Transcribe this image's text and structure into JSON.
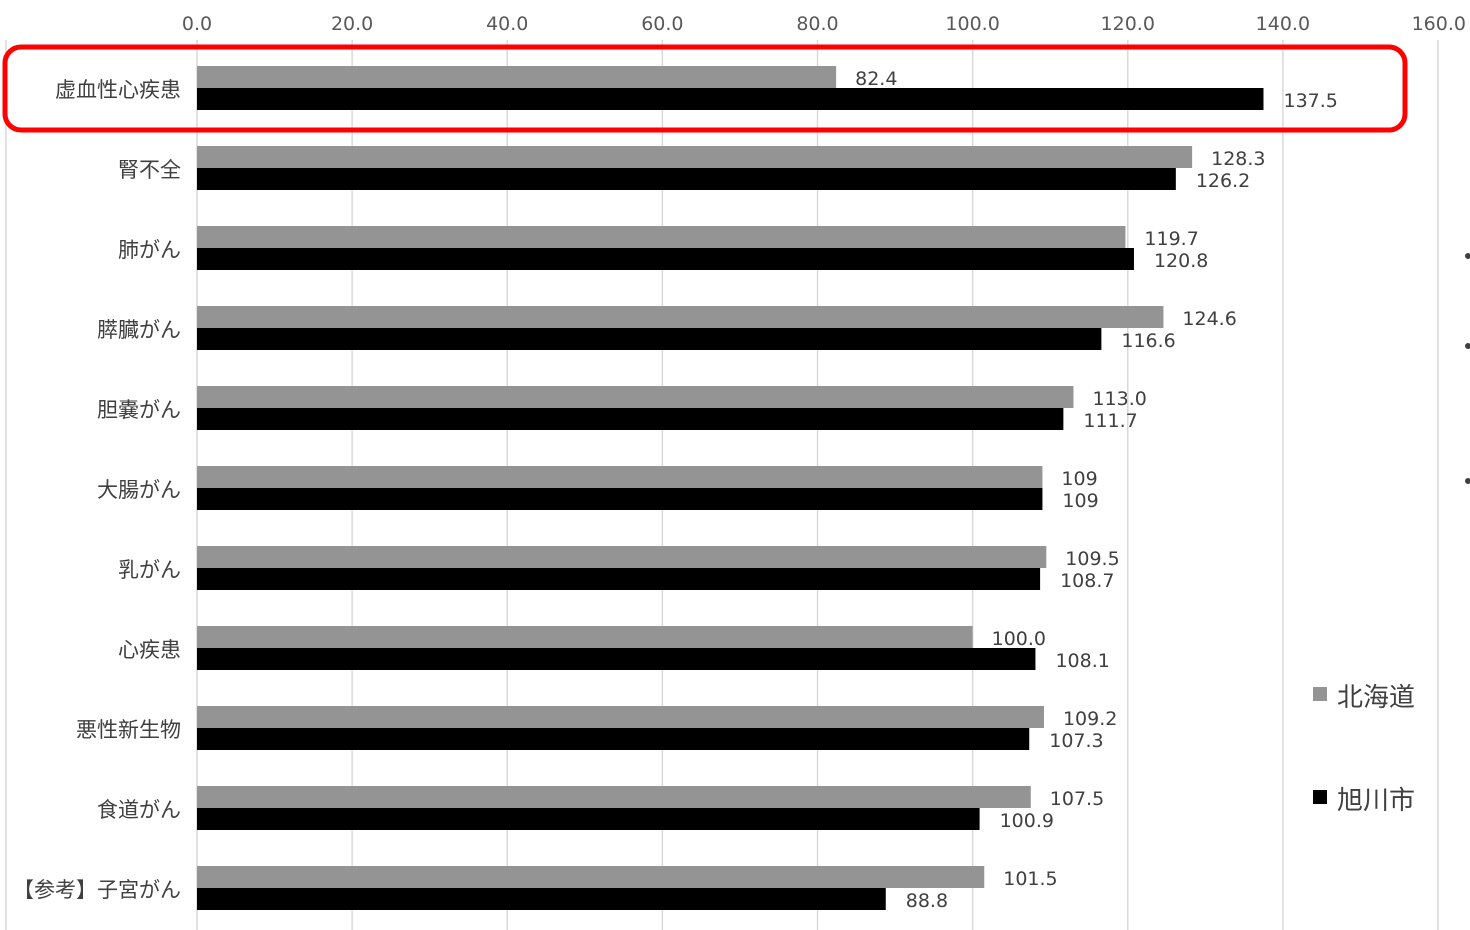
{
  "chart_data": {
    "type": "bar",
    "orientation": "horizontal",
    "title": "",
    "xlabel": "",
    "ylabel": "",
    "xlim": [
      0,
      160
    ],
    "x_ticks": [
      "0.0",
      "20.0",
      "40.0",
      "60.0",
      "80.0",
      "100.0",
      "120.0",
      "140.0",
      "160.0"
    ],
    "grid": true,
    "legend_position": "right",
    "categories": [
      "虚血性心疾患",
      "腎不全",
      "肺がん",
      "膵臓がん",
      "胆嚢がん",
      "大腸がん",
      "乳がん",
      "心疾患",
      "悪性新生物",
      "食道がん",
      "【参考】子宮がん"
    ],
    "highlighted_category": "虚血性心疾患",
    "highlight_color": "#ff0000",
    "series": [
      {
        "name": "北海道",
        "color": "#949494",
        "values": [
          82.4,
          128.3,
          119.7,
          124.6,
          113.0,
          109,
          109.5,
          100.0,
          109.2,
          107.5,
          101.5
        ],
        "labels": [
          "82.4",
          "128.3",
          "119.7",
          "124.6",
          "113.0",
          "109",
          "109.5",
          "100.0",
          "109.2",
          "107.5",
          "101.5"
        ]
      },
      {
        "name": "旭川市",
        "color": "#000000",
        "values": [
          137.5,
          126.2,
          120.8,
          116.6,
          111.7,
          109,
          108.7,
          108.1,
          107.3,
          100.9,
          88.8
        ],
        "labels": [
          "137.5",
          "126.2",
          "120.8",
          "116.6",
          "111.7",
          "109",
          "108.7",
          "108.1",
          "107.3",
          "100.9",
          "88.8"
        ]
      }
    ]
  }
}
